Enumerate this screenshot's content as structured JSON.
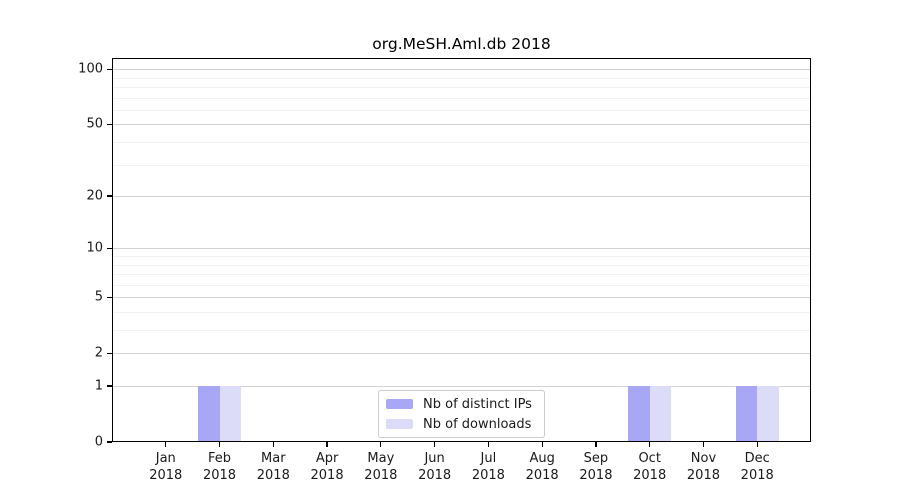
{
  "figure": {
    "title": "org.MeSH.Aml.db 2018"
  },
  "chart_data": {
    "type": "bar",
    "title": "org.MeSH.Aml.db 2018",
    "categories": [
      "Jan",
      "Feb",
      "Mar",
      "Apr",
      "May",
      "Jun",
      "Jul",
      "Aug",
      "Sep",
      "Oct",
      "Nov",
      "Dec"
    ],
    "x_tick_year": "2018",
    "series": [
      {
        "name": "Nb of distinct IPs",
        "color": "#a7a7f6",
        "values": [
          0,
          1,
          0,
          0,
          0,
          0,
          0,
          0,
          0,
          1,
          0,
          1
        ]
      },
      {
        "name": "Nb of downloads",
        "color": "#dcdcf8",
        "values": [
          0,
          1,
          0,
          0,
          0,
          0,
          0,
          0,
          0,
          1,
          0,
          1
        ]
      }
    ],
    "yscale": "log1p",
    "ylim": [
      0,
      115
    ],
    "yticks": [
      0,
      1,
      2,
      5,
      10,
      20,
      50,
      100
    ],
    "minor_yticks": [
      3,
      4,
      6,
      7,
      8,
      9,
      30,
      40,
      60,
      70,
      80,
      90
    ],
    "grid": true,
    "legend_position": "bottom-center"
  },
  "colors": {
    "bar_distinct_ips": "#a7a7f6",
    "bar_downloads": "#dcdcf8",
    "grid_major": "#d2d2d2",
    "grid_minor": "#f2f2f2",
    "axis": "#000000",
    "text": "#1a1a1a",
    "legend_border": "#cccccc",
    "background": "#ffffff"
  }
}
